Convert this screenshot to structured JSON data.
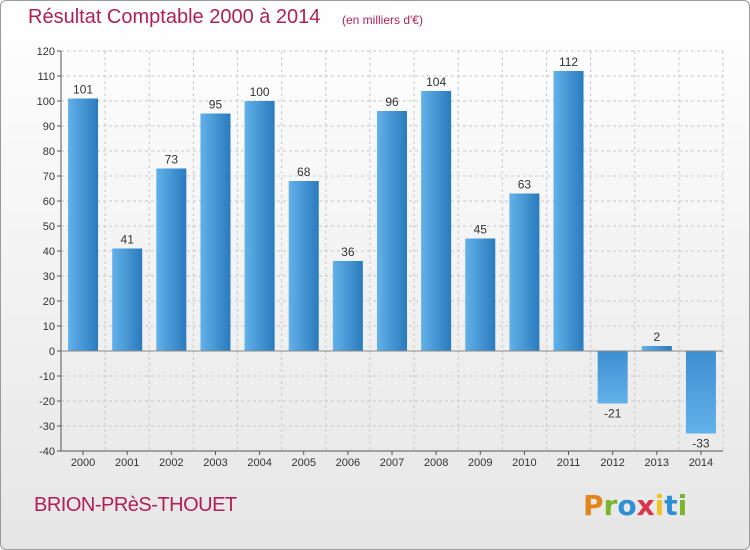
{
  "header": {
    "title": "Résultat Comptable 2000 à 2014",
    "subtitle": "(en milliers d'€)"
  },
  "footer": {
    "commune": "BRION-PRèS-THOUET",
    "brand_letters": [
      "P",
      "r",
      "o",
      "x",
      "i",
      "t",
      "i"
    ],
    "brand_colors": [
      "#e2851c",
      "#79b52d",
      "#2e8fd6",
      "#d9344b",
      "#f2c028",
      "#2e8fd6",
      "#79b52d"
    ]
  },
  "colors": {
    "title": "#b01f55",
    "bar_light": "#62b1ea",
    "bar_dark": "#2a7bbd",
    "grid": "#c8c8c8",
    "axis": "#555555"
  },
  "chart_data": {
    "type": "bar",
    "title": "Résultat Comptable 2000 à 2014",
    "subtitle": "(en milliers d'€)",
    "categories": [
      "2000",
      "2001",
      "2002",
      "2003",
      "2004",
      "2005",
      "2006",
      "2007",
      "2008",
      "2009",
      "2010",
      "2011",
      "2012",
      "2013",
      "2014"
    ],
    "values": [
      101,
      41,
      73,
      95,
      100,
      68,
      36,
      96,
      104,
      45,
      63,
      112,
      -21,
      2,
      -33
    ],
    "ylim": [
      -40,
      120
    ],
    "yticks": [
      -40,
      -30,
      -20,
      -10,
      0,
      10,
      20,
      30,
      40,
      50,
      60,
      70,
      80,
      90,
      100,
      110,
      120
    ],
    "grid": true,
    "legend": "none"
  }
}
